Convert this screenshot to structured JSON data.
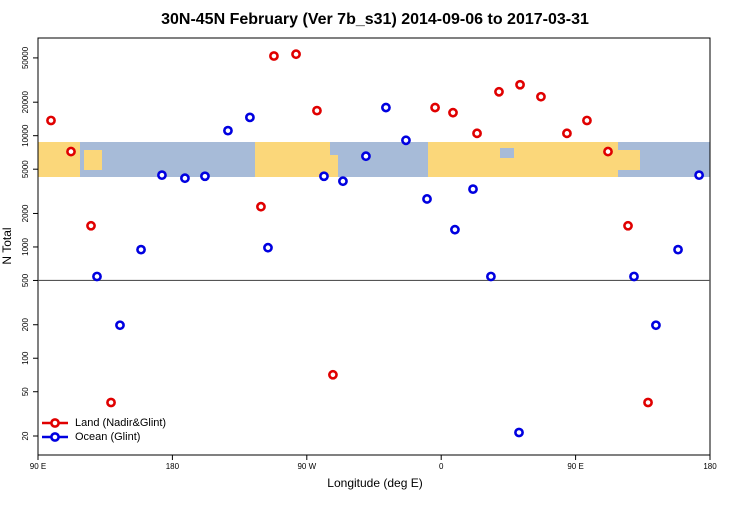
{
  "chart_data": {
    "type": "scatter",
    "title": "30N-45N February (Ver 7b_s31)   2014-09-06 to 2017-03-31",
    "xlabel": "Longitude (deg E)",
    "ylabel": "N Total",
    "xlim": [
      90,
      540
    ],
    "xticks": [
      {
        "value": 90,
        "label": "90 E"
      },
      {
        "value": 180,
        "label": "180"
      },
      {
        "value": 270,
        "label": "90 W"
      },
      {
        "value": 360,
        "label": "0"
      },
      {
        "value": 450,
        "label": "90 E"
      },
      {
        "value": 540,
        "label": "180"
      }
    ],
    "ylim": [
      13.5,
      75500
    ],
    "log_y": true,
    "yticks": [
      20,
      50,
      100,
      200,
      500,
      1000,
      2000,
      5000,
      10000,
      20000,
      50000
    ],
    "hline": 500,
    "legend": "bottom-left",
    "series": [
      {
        "name": "Land (Nadir&Glint)",
        "color": "#e00000",
        "x": [
          98.7,
          112.1,
          125.5,
          138.9,
          239.3,
          248.0,
          262.8,
          276.8,
          287.5,
          355.9,
          367.9,
          384.0,
          398.7,
          412.8,
          426.8,
          444.2,
          457.6,
          471.7,
          485.1,
          498.5
        ],
        "values": [
          13700,
          7200,
          1550,
          40,
          2300,
          52000,
          54000,
          16800,
          71,
          17900,
          16100,
          10500,
          24800,
          28700,
          22400,
          10500,
          13700,
          7200,
          1550,
          40
        ]
      },
      {
        "name": "Ocean (Glint)",
        "color": "#0000e0",
        "x": [
          129.5,
          144.9,
          159.0,
          173.0,
          188.4,
          201.8,
          217.2,
          231.9,
          244.0,
          281.5,
          294.2,
          309.6,
          323.0,
          336.4,
          350.5,
          369.2,
          381.3,
          393.3,
          412.1,
          489.1,
          503.8,
          518.6,
          532.7
        ],
        "values": [
          543,
          198,
          946,
          4420,
          4150,
          4320,
          11100,
          14600,
          985,
          4320,
          3900,
          6540,
          17900,
          9090,
          2700,
          1430,
          3310,
          543,
          21.5,
          543,
          198,
          946,
          4420
        ]
      }
    ]
  }
}
